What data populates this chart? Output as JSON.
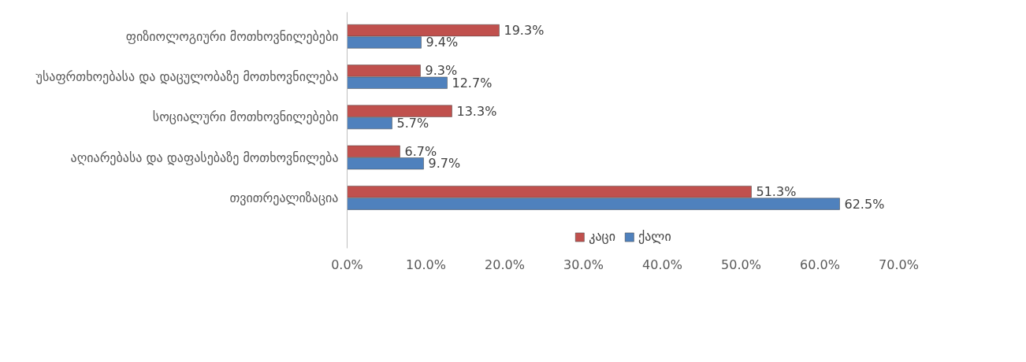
{
  "chart_data": {
    "type": "bar",
    "orientation": "horizontal",
    "categories": [
      "ფიზიოლოგიური მოთხოვნილებები",
      "უსაფრთხოებასა და დაცულობაზე მოთხოვნილება",
      "სოციალური მოთხოვნილებები",
      "აღიარებასა და დაფასებაზე მოთხოვნილება",
      "თვითრეალიზაცია"
    ],
    "series": [
      {
        "name": "კაცი",
        "color": "#c0504d",
        "values": [
          19.3,
          9.3,
          13.3,
          6.7,
          51.3
        ],
        "value_labels": [
          "19.3%",
          "9.3%",
          "13.3%",
          "6.7%",
          "51.3%"
        ]
      },
      {
        "name": "ქალი",
        "color": "#4f81bd",
        "values": [
          9.4,
          12.7,
          5.7,
          9.7,
          62.5
        ],
        "value_labels": [
          "9.4%",
          "12.7%",
          "5.7%",
          "9.7%",
          "62.5%"
        ]
      }
    ],
    "xlim": [
      0,
      70
    ],
    "xticks": [
      {
        "value": 0,
        "label": "0.0%"
      },
      {
        "value": 10,
        "label": "10.0%"
      },
      {
        "value": 20,
        "label": "20.0%"
      },
      {
        "value": 30,
        "label": "30.0%"
      },
      {
        "value": 40,
        "label": "40.0%"
      },
      {
        "value": 50,
        "label": "50.0%"
      },
      {
        "value": 60,
        "label": "60.0%"
      },
      {
        "value": 70,
        "label": "70.0%"
      }
    ],
    "grid": false,
    "legend": "bottom"
  }
}
